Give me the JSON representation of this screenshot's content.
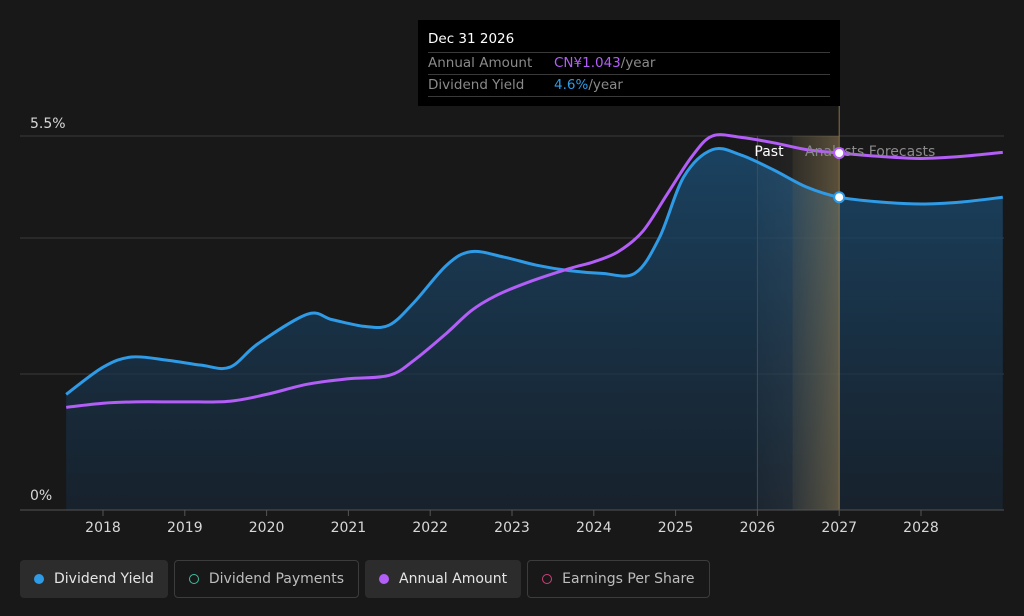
{
  "tooltip": {
    "date": "Dec 31 2026",
    "annual_amount_label": "Annual Amount",
    "annual_amount_value": "CN¥1.043",
    "annual_amount_unit": "/year",
    "dividend_yield_label": "Dividend Yield",
    "dividend_yield_value": "4.6%",
    "dividend_yield_unit": "/year"
  },
  "region_labels": {
    "past": "Past",
    "forecast": "Analysts Forecasts"
  },
  "legend": [
    {
      "label": "Dividend Yield",
      "color": "#2f9be6",
      "style": "filled"
    },
    {
      "label": "Dividend Payments",
      "color": "#3fbf9f",
      "style": "outline"
    },
    {
      "label": "Annual Amount",
      "color": "#b25ef7",
      "style": "filled"
    },
    {
      "label": "Earnings Per Share",
      "color": "#d0407a",
      "style": "outline"
    }
  ],
  "colors": {
    "dividend_yield": "#2f9be6",
    "annual_amount": "#b25ef7",
    "background": "#181818"
  },
  "chart_data": {
    "type": "line",
    "ylim": [
      0,
      5.5
    ],
    "y_tick_labels": [
      "0%",
      "5.5%"
    ],
    "x_tick_labels": [
      "2018",
      "2019",
      "2020",
      "2021",
      "2022",
      "2023",
      "2024",
      "2025",
      "2026",
      "2027",
      "2028"
    ],
    "xlim": [
      2017.55,
      2029.0
    ],
    "past_end": 2026.0,
    "forecast_band_end": 2027.0,
    "highlight_x": 2027.0,
    "series": [
      {
        "name": "Dividend Yield",
        "color": "#2f9be6",
        "filled": true,
        "points": [
          [
            2017.55,
            1.7
          ],
          [
            2018.0,
            2.1
          ],
          [
            2018.35,
            2.25
          ],
          [
            2018.8,
            2.2
          ],
          [
            2019.2,
            2.13
          ],
          [
            2019.55,
            2.1
          ],
          [
            2019.9,
            2.45
          ],
          [
            2020.5,
            2.88
          ],
          [
            2020.8,
            2.8
          ],
          [
            2021.2,
            2.7
          ],
          [
            2021.5,
            2.72
          ],
          [
            2021.8,
            3.05
          ],
          [
            2022.2,
            3.6
          ],
          [
            2022.5,
            3.8
          ],
          [
            2022.9,
            3.72
          ],
          [
            2023.3,
            3.6
          ],
          [
            2023.7,
            3.52
          ],
          [
            2024.1,
            3.48
          ],
          [
            2024.5,
            3.48
          ],
          [
            2024.8,
            4.0
          ],
          [
            2025.1,
            4.9
          ],
          [
            2025.45,
            5.3
          ],
          [
            2025.8,
            5.22
          ],
          [
            2026.2,
            5.0
          ],
          [
            2026.6,
            4.75
          ],
          [
            2027.0,
            4.6
          ],
          [
            2027.5,
            4.53
          ],
          [
            2028.0,
            4.5
          ],
          [
            2028.5,
            4.53
          ],
          [
            2029.0,
            4.6
          ]
        ]
      },
      {
        "name": "Annual Amount",
        "color": "#b25ef7",
        "filled": false,
        "points": [
          [
            2017.55,
            1.51
          ],
          [
            2018.0,
            1.57
          ],
          [
            2018.4,
            1.59
          ],
          [
            2019.0,
            1.59
          ],
          [
            2019.55,
            1.6
          ],
          [
            2020.0,
            1.7
          ],
          [
            2020.5,
            1.85
          ],
          [
            2021.0,
            1.93
          ],
          [
            2021.5,
            1.98
          ],
          [
            2021.8,
            2.2
          ],
          [
            2022.2,
            2.6
          ],
          [
            2022.5,
            2.93
          ],
          [
            2022.8,
            3.15
          ],
          [
            2023.2,
            3.35
          ],
          [
            2023.7,
            3.55
          ],
          [
            2024.0,
            3.65
          ],
          [
            2024.3,
            3.8
          ],
          [
            2024.6,
            4.1
          ],
          [
            2024.9,
            4.65
          ],
          [
            2025.2,
            5.2
          ],
          [
            2025.45,
            5.5
          ],
          [
            2025.8,
            5.48
          ],
          [
            2026.2,
            5.4
          ],
          [
            2026.6,
            5.3
          ],
          [
            2027.0,
            5.25
          ],
          [
            2027.5,
            5.2
          ],
          [
            2028.0,
            5.17
          ],
          [
            2028.5,
            5.2
          ],
          [
            2029.0,
            5.26
          ]
        ]
      }
    ]
  }
}
